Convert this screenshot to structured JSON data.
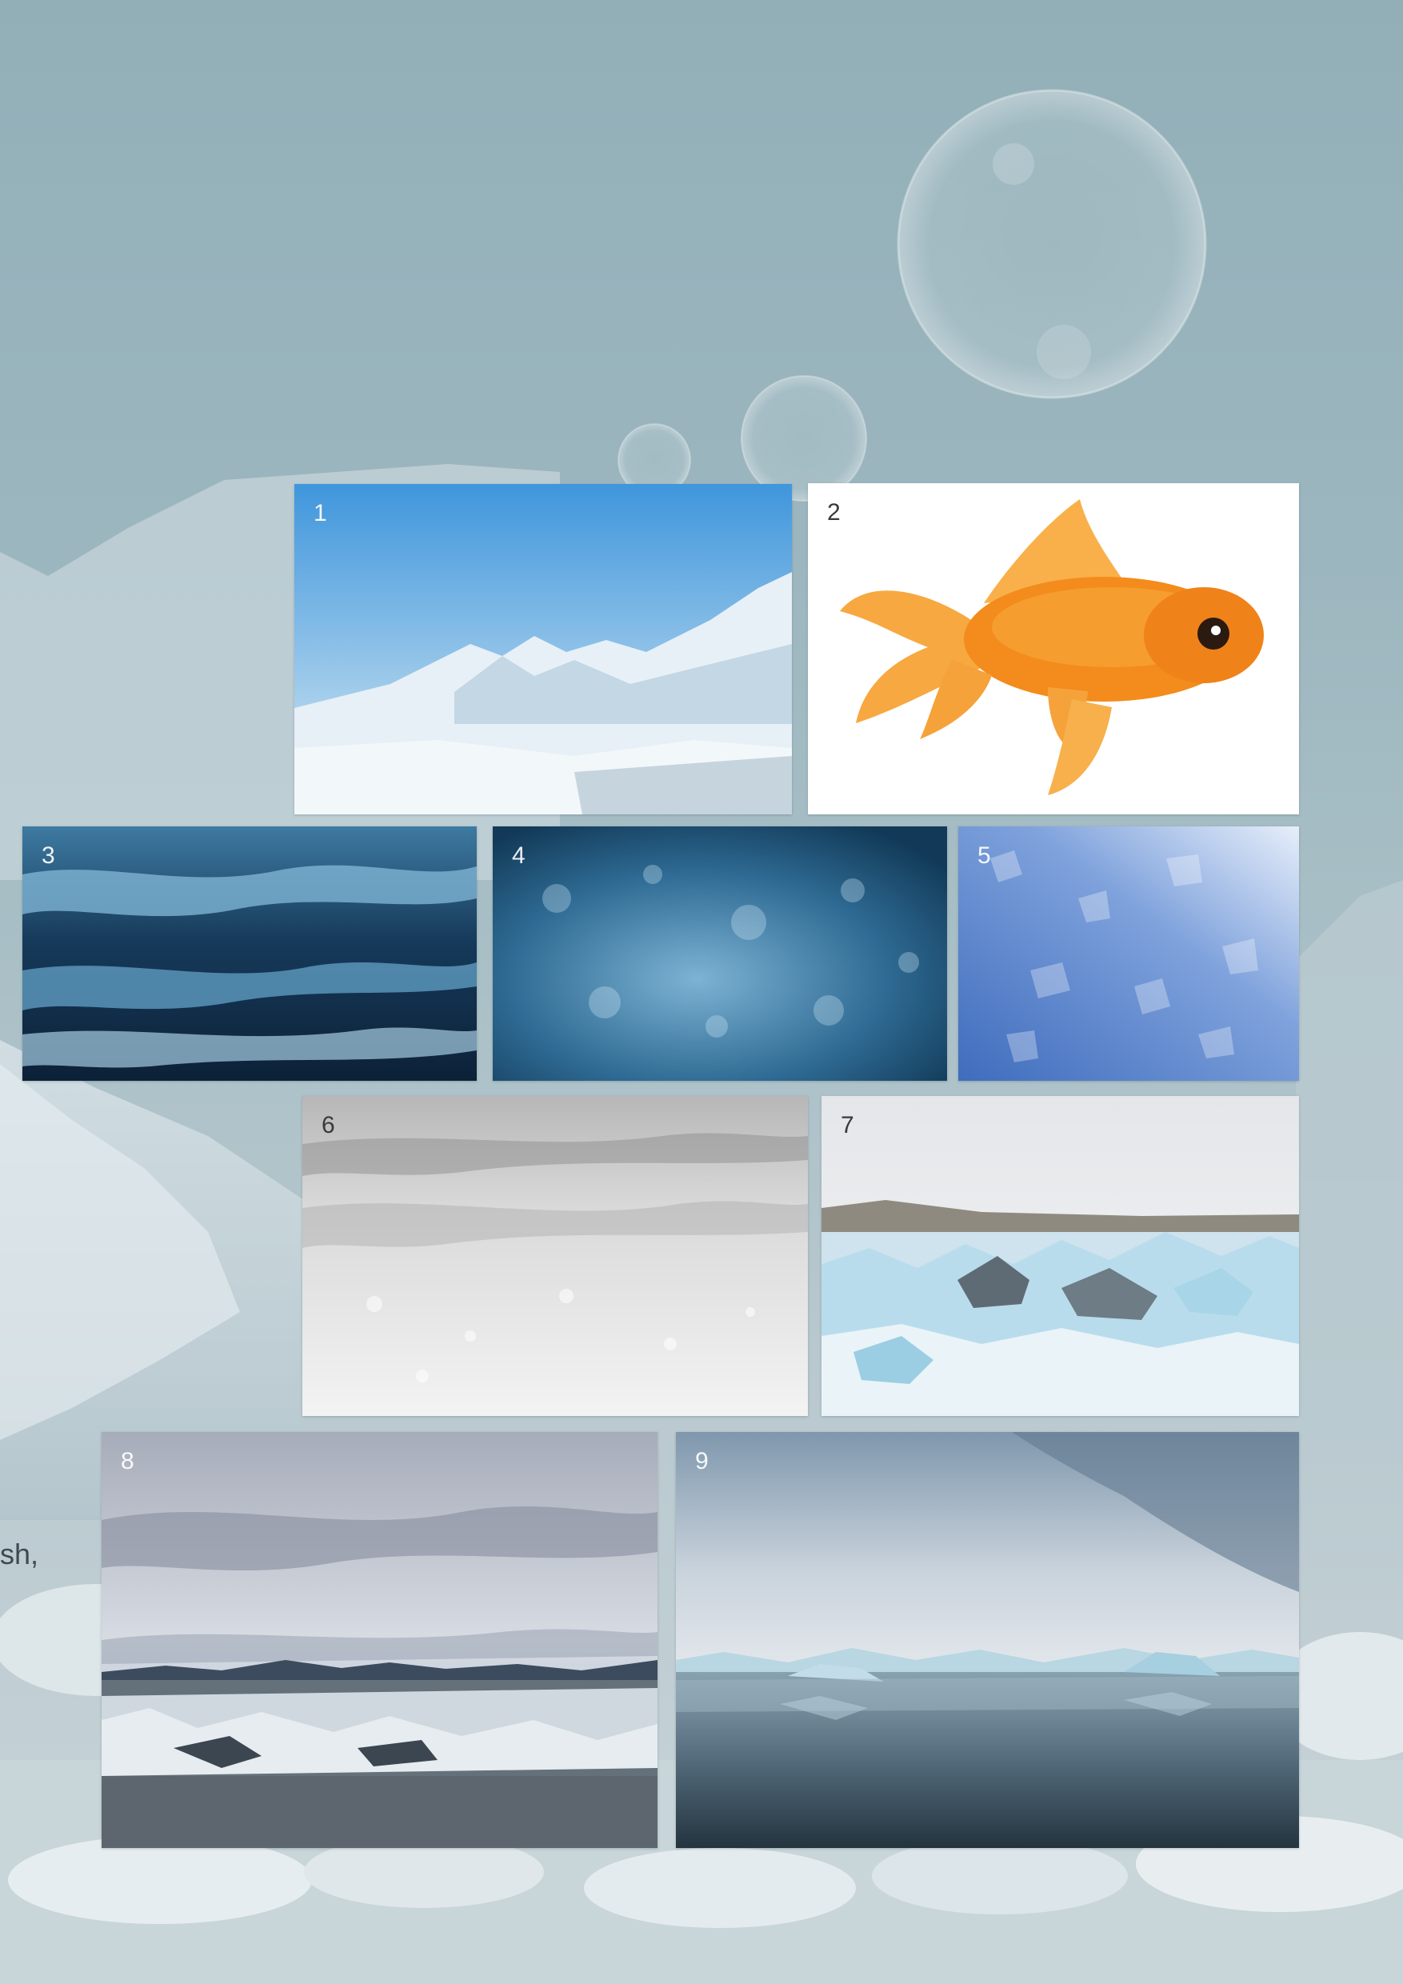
{
  "background": {
    "cutoff_text": "sh,",
    "colors": {
      "sky": "#9ab4bd",
      "ice": "#dfe7ea"
    }
  },
  "tiles": [
    {
      "number": "1",
      "subject": "snowy-mountain-valley",
      "colors": [
        "#4a9fe0",
        "#e8f1f7"
      ]
    },
    {
      "number": "2",
      "subject": "goldfish",
      "colors": [
        "#ffffff",
        "#f5921e"
      ]
    },
    {
      "number": "3",
      "subject": "dark-ice-texture",
      "colors": [
        "#0e2a44",
        "#5d9fc4"
      ]
    },
    {
      "number": "4",
      "subject": "frozen-surface",
      "colors": [
        "#1c4c6e",
        "#6aa6c9"
      ]
    },
    {
      "number": "5",
      "subject": "ice-crystals",
      "colors": [
        "#4b78c4",
        "#d5e4f6"
      ]
    },
    {
      "number": "6",
      "subject": "snow-closeup",
      "colors": [
        "#aaaaaa",
        "#f3f3f3"
      ]
    },
    {
      "number": "7",
      "subject": "glacier-lagoon-ice-chunks",
      "colors": [
        "#eef1f4",
        "#a9d3e6"
      ]
    },
    {
      "number": "8",
      "subject": "cloudy-glacier-lagoon",
      "colors": [
        "#8f95a6",
        "#4c5a66"
      ]
    },
    {
      "number": "9",
      "subject": "icebergs-reflection",
      "colors": [
        "#8aa3b8",
        "#2c4150"
      ]
    }
  ]
}
